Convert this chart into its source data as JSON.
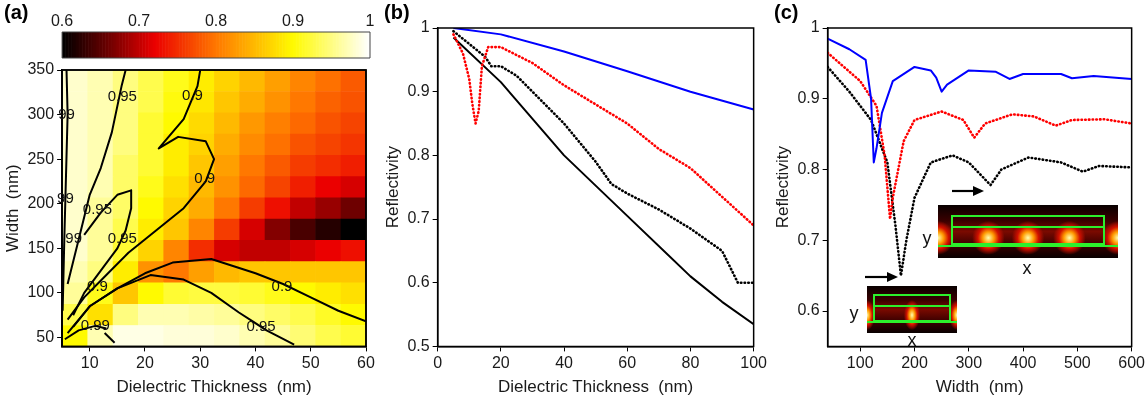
{
  "chart_data": [
    {
      "type": "heatmap",
      "clim": [
        0.6,
        1
      ],
      "cticks": [
        0.6,
        0.7,
        0.8,
        0.9,
        1
      ],
      "tick_labels": false,
      "categories": [
        null,
        null,
        null,
        null,
        null,
        null,
        null,
        null,
        null,
        null,
        null,
        null
      ],
      "y_categories": [
        null,
        null,
        null,
        null,
        null,
        null,
        null,
        null,
        null,
        null,
        null,
        null,
        null
      ],
      "cells": [
        [
          0.98,
          0.97,
          0.95,
          0.93,
          0.91,
          0.89,
          0.87,
          0.85,
          0.83,
          0.81,
          0.795,
          0.78
        ],
        [
          0.98,
          0.97,
          0.95,
          0.93,
          0.905,
          0.885,
          0.86,
          0.84,
          0.82,
          0.8,
          0.785,
          0.775
        ],
        [
          0.98,
          0.97,
          0.95,
          0.92,
          0.9,
          0.875,
          0.85,
          0.825,
          0.805,
          0.79,
          0.775,
          0.765
        ],
        [
          0.98,
          0.97,
          0.95,
          0.92,
          0.89,
          0.87,
          0.84,
          0.815,
          0.795,
          0.775,
          0.765,
          0.755
        ],
        [
          0.98,
          0.97,
          0.94,
          0.92,
          0.89,
          0.86,
          0.83,
          0.8,
          0.78,
          0.76,
          0.75,
          0.74
        ],
        [
          0.98,
          0.97,
          0.94,
          0.91,
          0.88,
          0.85,
          0.82,
          0.79,
          0.765,
          0.74,
          0.72,
          0.71
        ],
        [
          0.98,
          0.96,
          0.94,
          0.9,
          0.87,
          0.84,
          0.8,
          0.76,
          0.73,
          0.7,
          0.68,
          0.66
        ],
        [
          0.98,
          0.96,
          0.93,
          0.89,
          0.86,
          0.81,
          0.76,
          0.71,
          0.67,
          0.64,
          0.62,
          0.6
        ],
        [
          0.98,
          0.96,
          0.92,
          0.87,
          0.81,
          0.75,
          0.71,
          0.7,
          0.7,
          0.71,
          0.72,
          0.73
        ],
        [
          0.97,
          0.95,
          0.89,
          0.82,
          0.8,
          0.83,
          0.85,
          0.86,
          0.86,
          0.86,
          0.86,
          0.86
        ],
        [
          0.96,
          0.91,
          0.86,
          0.9,
          0.92,
          0.925,
          0.925,
          0.92,
          0.91,
          0.9,
          0.89,
          0.88
        ],
        [
          0.93,
          0.88,
          0.95,
          0.97,
          0.97,
          0.965,
          0.96,
          0.95,
          0.94,
          0.93,
          0.915,
          0.9
        ],
        [
          0.9,
          0.97,
          0.99,
          0.99,
          0.985,
          0.985,
          0.98,
          0.97,
          0.96,
          0.945,
          0.93,
          0.92
        ]
      ]
    },
    {
      "type": "line",
      "title": "(a)",
      "xlabel": "Dielectric Thickness  (nm)",
      "ylabel": "Width  (nm)",
      "xlim": [
        5,
        60
      ],
      "xticks": [
        10,
        20,
        30,
        40,
        50,
        60
      ],
      "ylim": [
        40,
        350
      ],
      "yticks": [
        50,
        100,
        150,
        200,
        250,
        300,
        350
      ],
      "series": [
        {
          "color": "#000000",
          "x": [
            5.8,
            6,
            5.7,
            5.4,
            5.1
          ],
          "values": [
            350,
            300,
            230,
            160,
            80
          ]
        },
        {
          "color": "#000000",
          "x": [
            16.5,
            15.8,
            14,
            12,
            10,
            8,
            6
          ],
          "values": [
            350,
            333,
            280,
            240,
            210,
            160,
            110
          ]
        },
        {
          "color": "#000000",
          "x": [
            9,
            12,
            15,
            17.5,
            17.5,
            16.5,
            15,
            12,
            9,
            7
          ],
          "values": [
            165,
            190,
            210,
            215,
            195,
            170,
            150,
            125,
            100,
            75
          ]
        },
        {
          "color": "#000000",
          "x": [
            30,
            29.5,
            27,
            22.5,
            26,
            31,
            32.5,
            31,
            27,
            22,
            17,
            13,
            9,
            6
          ],
          "values": [
            350,
            332,
            295,
            262,
            275,
            270,
            250,
            225,
            195,
            170,
            145,
            120,
            95,
            70
          ]
        },
        {
          "color": "#000000",
          "x": [
            6,
            10,
            15,
            20,
            25,
            32,
            40,
            45,
            50,
            55,
            60
          ],
          "values": [
            55,
            85,
            105,
            122,
            134,
            138,
            122,
            110,
            95,
            80,
            68
          ]
        },
        {
          "color": "#000000",
          "x": [
            7,
            10,
            15,
            21,
            27,
            32,
            37,
            42,
            47
          ],
          "values": [
            62,
            85,
            105,
            120,
            115,
            100,
            78,
            58,
            42
          ]
        },
        {
          "color": "#000000",
          "x": [
            12.7,
            14.5
          ],
          "values": [
            55,
            44
          ]
        },
        {
          "color": "#000000",
          "x": [
            5.5,
            8,
            11,
            13
          ],
          "values": [
            48,
            58,
            63,
            60
          ]
        }
      ],
      "annotations": [
        {
          "text": "0.95",
          "x": 15.9,
          "y": 320
        },
        {
          "text": "0.9",
          "x": 28.6,
          "y": 321
        },
        {
          "text": "99",
          "x": 5.8,
          "y": 300
        },
        {
          "text": "0.9",
          "x": 30.8,
          "y": 228
        },
        {
          "text": "99",
          "x": 5.6,
          "y": 205
        },
        {
          "text": "0.95",
          "x": 11.4,
          "y": 193
        },
        {
          "text": "99",
          "x": 7.1,
          "y": 161
        },
        {
          "text": "0.95",
          "x": 15.9,
          "y": 161
        },
        {
          "text": "0.9",
          "x": 11.4,
          "y": 107
        },
        {
          "text": "0.9",
          "x": 44.8,
          "y": 107
        },
        {
          "text": "0.99",
          "x": 11,
          "y": 63
        },
        {
          "text": "0.95",
          "x": 41,
          "y": 62
        }
      ]
    },
    {
      "type": "line",
      "title": "(b)",
      "xlabel": "Dielectric Thickness  (nm)",
      "ylabel": "Reflectivity",
      "xlim": [
        0,
        100
      ],
      "xticks": [
        0,
        20,
        40,
        60,
        80,
        100
      ],
      "ylim": [
        0.5,
        1
      ],
      "yticks": [
        0.5,
        0.6,
        0.7,
        0.8,
        0.9,
        1
      ],
      "series": [
        {
          "color": "#0000ff",
          "line_style": "solid",
          "x": [
            5,
            20,
            40,
            60,
            80,
            100
          ],
          "values": [
            1.0,
            0.99,
            0.963,
            0.932,
            0.9,
            0.872
          ]
        },
        {
          "color": "#ff0000",
          "line_style": "dotted",
          "x": [
            5,
            8,
            10,
            11,
            12,
            13,
            14,
            16,
            20,
            30,
            40,
            50,
            60,
            70,
            80,
            90,
            100
          ],
          "values": [
            0.99,
            0.96,
            0.92,
            0.88,
            0.85,
            0.87,
            0.94,
            0.97,
            0.97,
            0.945,
            0.91,
            0.88,
            0.85,
            0.81,
            0.78,
            0.735,
            0.69
          ]
        },
        {
          "color": "#000000",
          "line_style": "dotted",
          "x": [
            5,
            10,
            15,
            17,
            20,
            25,
            30,
            40,
            50,
            55,
            60,
            70,
            80,
            90,
            95,
            100
          ],
          "values": [
            0.995,
            0.975,
            0.955,
            0.94,
            0.94,
            0.925,
            0.9,
            0.85,
            0.79,
            0.755,
            0.74,
            0.715,
            0.685,
            0.65,
            0.6,
            0.6
          ]
        },
        {
          "color": "#000000",
          "line_style": "solid",
          "x": [
            5,
            20,
            40,
            60,
            80,
            90,
            100
          ],
          "values": [
            0.985,
            0.915,
            0.8,
            0.705,
            0.61,
            0.57,
            0.535
          ]
        }
      ]
    },
    {
      "type": "line",
      "title": "(c)",
      "xlabel": "Width  (nm)",
      "ylabel": "Reflectivity",
      "xlim": [
        40,
        600
      ],
      "xticks": [
        100,
        200,
        300,
        400,
        500,
        600
      ],
      "ylim": [
        0.55,
        1
      ],
      "yticks": [
        0.6,
        0.7,
        0.8,
        0.9,
        1
      ],
      "series": [
        {
          "color": "#0000ff",
          "line_style": "solid",
          "x": [
            40,
            80,
            110,
            120,
            125,
            130,
            140,
            160,
            200,
            230,
            240,
            250,
            260,
            300,
            350,
            375,
            400,
            470,
            490,
            530,
            600
          ],
          "values": [
            0.985,
            0.97,
            0.955,
            0.9,
            0.81,
            0.83,
            0.88,
            0.925,
            0.945,
            0.94,
            0.93,
            0.91,
            0.92,
            0.94,
            0.938,
            0.928,
            0.935,
            0.935,
            0.929,
            0.932,
            0.928
          ]
        },
        {
          "color": "#ff0000",
          "line_style": "dotted",
          "x": [
            40,
            100,
            130,
            145,
            155,
            160,
            180,
            200,
            250,
            290,
            310,
            330,
            380,
            420,
            460,
            490,
            550,
            600
          ],
          "values": [
            0.965,
            0.925,
            0.89,
            0.82,
            0.73,
            0.76,
            0.84,
            0.87,
            0.882,
            0.87,
            0.845,
            0.865,
            0.878,
            0.875,
            0.862,
            0.87,
            0.871,
            0.865
          ]
        },
        {
          "color": "#000000",
          "line_style": "dotted",
          "x": [
            40,
            80,
            120,
            150,
            165,
            175,
            185,
            200,
            230,
            270,
            300,
            325,
            340,
            360,
            410,
            470,
            510,
            540,
            600
          ],
          "values": [
            0.945,
            0.91,
            0.87,
            0.81,
            0.72,
            0.65,
            0.7,
            0.76,
            0.81,
            0.82,
            0.81,
            0.79,
            0.778,
            0.8,
            0.817,
            0.81,
            0.797,
            0.805,
            0.803
          ]
        }
      ],
      "annotations": [
        "y",
        "x",
        "y",
        "x"
      ]
    }
  ]
}
